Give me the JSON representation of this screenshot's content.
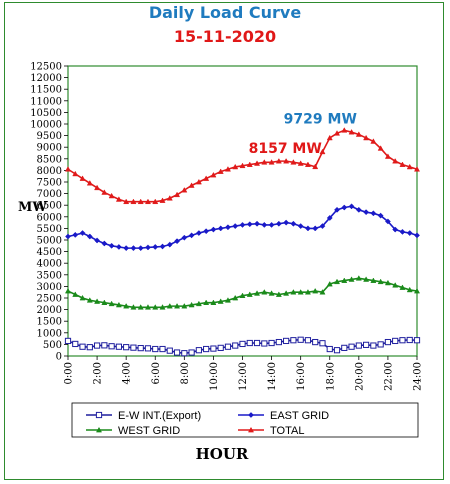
{
  "chart_data": {
    "type": "line",
    "title": "Daily Load Curve",
    "subtitle": "15-11-2020",
    "xlabel": "HOUR",
    "ylabel": "MW",
    "ylim": [
      0,
      12500
    ],
    "yticks": [
      0,
      500,
      1000,
      1500,
      2000,
      2500,
      3000,
      3500,
      4000,
      4500,
      5000,
      5500,
      6000,
      6500,
      7000,
      7500,
      8000,
      8500,
      9000,
      9500,
      10000,
      10500,
      11000,
      11500,
      12000,
      12500
    ],
    "xlim": [
      0,
      24
    ],
    "xticks": [
      "0:00",
      "2:00",
      "4:00",
      "6:00",
      "8:00",
      "10:00",
      "12:00",
      "14:00",
      "16:00",
      "18:00",
      "20:00",
      "22:00",
      "24:00"
    ],
    "grid": false,
    "legend_position": "bottom",
    "x": [
      0,
      0.5,
      1,
      1.5,
      2,
      2.5,
      3,
      3.5,
      4,
      4.5,
      5,
      5.5,
      6,
      6.5,
      7,
      7.5,
      8,
      8.5,
      9,
      9.5,
      10,
      10.5,
      11,
      11.5,
      12,
      12.5,
      13,
      13.5,
      14,
      14.5,
      15,
      15.5,
      16,
      16.5,
      17,
      17.5,
      18,
      18.5,
      19,
      19.5,
      20,
      20.5,
      21,
      21.5,
      22,
      22.5,
      23,
      23.5,
      24
    ],
    "series": [
      {
        "name": "E-W INT.(Export)",
        "color": "#1f1f9e",
        "marker": "square-open",
        "values": [
          650,
          520,
          400,
          380,
          450,
          460,
          420,
          400,
          380,
          360,
          340,
          330,
          300,
          300,
          230,
          150,
          120,
          150,
          250,
          300,
          320,
          350,
          400,
          450,
          520,
          560,
          560,
          540,
          560,
          600,
          650,
          680,
          700,
          680,
          600,
          550,
          300,
          250,
          350,
          400,
          450,
          480,
          450,
          500,
          600,
          650,
          680,
          690,
          680
        ]
      },
      {
        "name": "EAST GRID",
        "color": "#1a1ac8",
        "marker": "diamond",
        "values": [
          5150,
          5220,
          5300,
          5150,
          4980,
          4850,
          4750,
          4700,
          4650,
          4650,
          4650,
          4680,
          4700,
          4720,
          4800,
          4950,
          5100,
          5200,
          5300,
          5380,
          5450,
          5500,
          5550,
          5600,
          5650,
          5680,
          5700,
          5650,
          5650,
          5700,
          5750,
          5700,
          5600,
          5500,
          5500,
          5600,
          5950,
          6300,
          6400,
          6450,
          6300,
          6200,
          6150,
          6050,
          5800,
          5450,
          5350,
          5300,
          5200
        ]
      },
      {
        "name": "WEST GRID",
        "color": "#1a8a1a",
        "marker": "triangle",
        "values": [
          2800,
          2650,
          2500,
          2400,
          2350,
          2300,
          2250,
          2200,
          2150,
          2100,
          2100,
          2100,
          2100,
          2100,
          2150,
          2150,
          2150,
          2200,
          2250,
          2300,
          2300,
          2350,
          2400,
          2500,
          2600,
          2650,
          2700,
          2750,
          2700,
          2650,
          2700,
          2750,
          2750,
          2750,
          2800,
          2750,
          3100,
          3200,
          3250,
          3300,
          3350,
          3300,
          3250,
          3200,
          3150,
          3050,
          2950,
          2850,
          2800
        ]
      },
      {
        "name": "TOTAL",
        "color": "#e01a1a",
        "marker": "triangle",
        "values": [
          8050,
          7850,
          7650,
          7450,
          7250,
          7050,
          6900,
          6750,
          6650,
          6650,
          6650,
          6650,
          6650,
          6700,
          6800,
          6950,
          7150,
          7350,
          7500,
          7650,
          7800,
          7950,
          8050,
          8150,
          8200,
          8250,
          8300,
          8350,
          8350,
          8400,
          8400,
          8350,
          8300,
          8250,
          8157,
          8800,
          9400,
          9600,
          9729,
          9650,
          9550,
          9400,
          9250,
          8950,
          8600,
          8400,
          8250,
          8150,
          8050
        ]
      }
    ],
    "annotations": [
      {
        "text": "8157 MW",
        "x": 17,
        "y": 8157,
        "color": "#e01818"
      },
      {
        "text": "9729 MW",
        "x": 19,
        "y": 9729,
        "color": "#1f7bbf"
      }
    ]
  }
}
